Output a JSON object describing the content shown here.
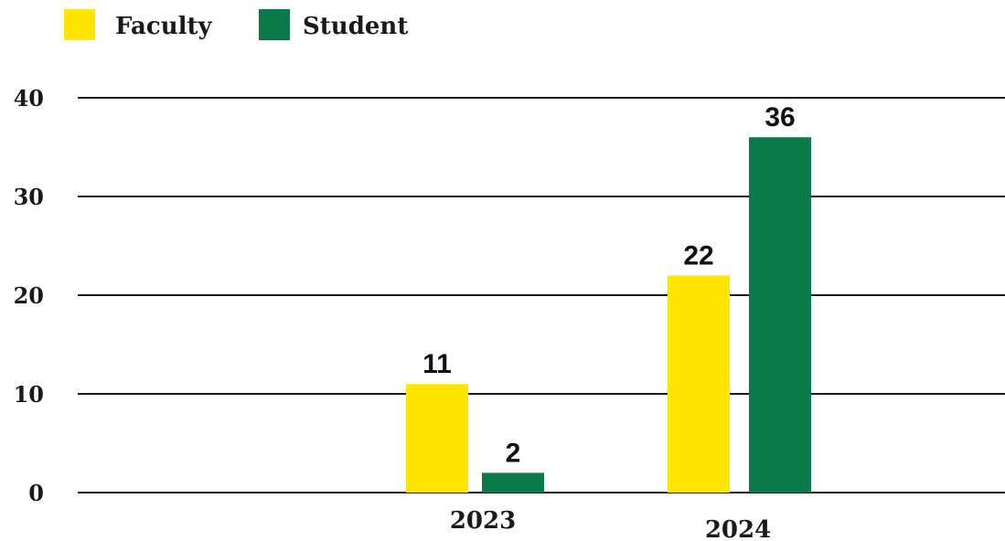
{
  "chart_data": {
    "type": "bar",
    "categories": [
      "2023",
      "2024"
    ],
    "series": [
      {
        "name": "Faculty",
        "values": [
          11,
          22
        ],
        "color": "#FFE500"
      },
      {
        "name": "Student",
        "values": [
          2,
          36
        ],
        "color": "#0B7A4B"
      }
    ],
    "value_labels": [
      [
        "11",
        "22"
      ],
      [
        "2",
        "36"
      ]
    ],
    "yticks": [
      "0",
      "10",
      "20",
      "30",
      "40"
    ],
    "ylim": [
      0,
      40
    ],
    "grid": true,
    "legend_position": "top-left",
    "title": "",
    "xlabel": "",
    "ylabel": ""
  }
}
